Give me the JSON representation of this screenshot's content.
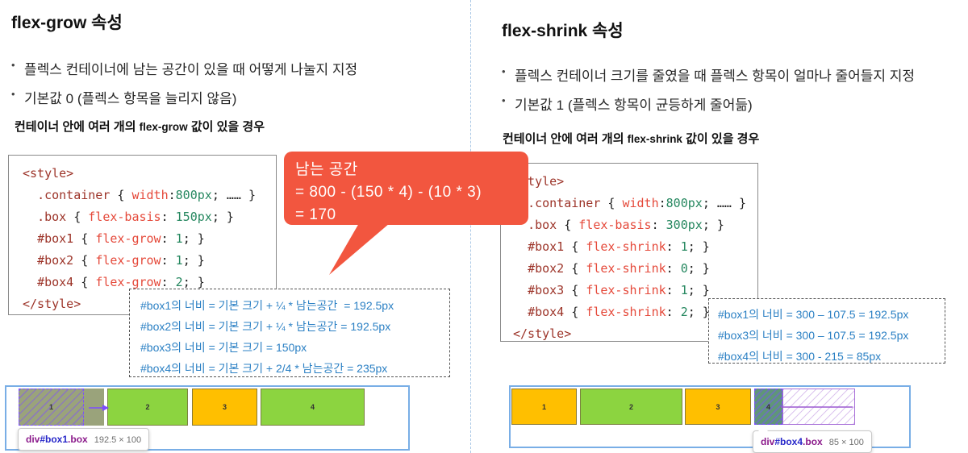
{
  "colors": {
    "accent_red_bubble": "#f2563f",
    "code_selector": "#9c3328",
    "code_property": "#e5493a",
    "code_value": "#25875f",
    "calc_blue": "#2b80c4",
    "box_green": "#8cd440",
    "box_orange": "#ffbf00",
    "overlay_sage": "#9aa37b",
    "overlay_teal": "#5f9678",
    "overlay_purple": "#7c4dff",
    "container_border_blue": "#79aee6"
  },
  "left": {
    "title": "flex-grow 속성",
    "bullets": [
      "플렉스 컨테이너에 남는 공간이 있을 때 어떻게 나눌지 지정",
      "기본값 0 (플렉스 항목을 늘리지 않음)"
    ],
    "subhead_pre": "컨테이너 안에 여러 개의 ",
    "subhead_latin": "flex-grow",
    "subhead_post": " 값이 있을 경우",
    "code_lines": [
      [
        [
          "sel",
          "<style>"
        ]
      ],
      [
        [
          "pln",
          "  "
        ],
        [
          "sel",
          ".container"
        ],
        [
          "pln",
          " { "
        ],
        [
          "prop",
          "width"
        ],
        [
          "pln",
          ":"
        ],
        [
          "val",
          "800px"
        ],
        [
          "pln",
          "; …… }"
        ]
      ],
      [
        [
          "pln",
          "  "
        ],
        [
          "sel",
          ".box"
        ],
        [
          "pln",
          " { "
        ],
        [
          "prop",
          "flex-basis"
        ],
        [
          "pln",
          ": "
        ],
        [
          "val",
          "150px"
        ],
        [
          "pln",
          "; }"
        ]
      ],
      [
        [
          "pln",
          "  "
        ],
        [
          "sel",
          "#box1"
        ],
        [
          "pln",
          " { "
        ],
        [
          "prop",
          "flex-grow"
        ],
        [
          "pln",
          ": "
        ],
        [
          "val",
          "1"
        ],
        [
          "pln",
          "; }"
        ]
      ],
      [
        [
          "pln",
          "  "
        ],
        [
          "sel",
          "#box2"
        ],
        [
          "pln",
          " { "
        ],
        [
          "prop",
          "flex-grow"
        ],
        [
          "pln",
          ": "
        ],
        [
          "val",
          "1"
        ],
        [
          "pln",
          "; }"
        ]
      ],
      [
        [
          "pln",
          "  "
        ],
        [
          "sel",
          "#box4"
        ],
        [
          "pln",
          " { "
        ],
        [
          "prop",
          "flex-grow"
        ],
        [
          "pln",
          ": "
        ],
        [
          "val",
          "2"
        ],
        [
          "pln",
          "; }"
        ]
      ],
      [
        [
          "sel",
          "</style>"
        ]
      ]
    ],
    "callout_lines": [
      "남는 공간",
      "= 800 - (150 * 4) - (10 * 3)",
      "= 170"
    ],
    "calc_lines": [
      "#box1의 너비 = 기본 크기 + ¼ * 남는공간  = 192.5px",
      "#box2의 너비 = 기본 크기 + ¼ * 남는공간 = 192.5px",
      "#box3의 너비 = 기본 크기 = 150px",
      "#box4의 너비 = 기본 크기 + 2/4 * 남는공간 = 235px"
    ],
    "items": [
      {
        "label": "1"
      },
      {
        "label": "2"
      },
      {
        "label": "3"
      },
      {
        "label": "4"
      }
    ],
    "tooltip": {
      "tag": "div",
      "id": "#box1",
      "class": ".box",
      "size": "192.5 × 100"
    }
  },
  "right": {
    "title": "flex-shrink 속성",
    "bullets": [
      "플렉스 컨테이너 크기를 줄였을 때 플렉스 항목이 얼마나 줄어들지 지정",
      "기본값 1 (플렉스 항목이 균등하게 줄어듦)"
    ],
    "subhead_pre": "컨테이너 안에 여러 개의 ",
    "subhead_latin": "flex-shrink",
    "subhead_post": " 값이 있을 경우",
    "code_lines": [
      [
        [
          "sel",
          "<style>"
        ]
      ],
      [
        [
          "pln",
          "  "
        ],
        [
          "sel",
          ".container"
        ],
        [
          "pln",
          " { "
        ],
        [
          "prop",
          "width"
        ],
        [
          "pln",
          ":"
        ],
        [
          "val",
          "800px"
        ],
        [
          "pln",
          "; …… }"
        ]
      ],
      [
        [
          "pln",
          "  "
        ],
        [
          "sel",
          ".box"
        ],
        [
          "pln",
          " { "
        ],
        [
          "prop",
          "flex-basis"
        ],
        [
          "pln",
          ": "
        ],
        [
          "val",
          "300px"
        ],
        [
          "pln",
          "; }"
        ]
      ],
      [
        [
          "pln",
          "  "
        ],
        [
          "sel",
          "#box1"
        ],
        [
          "pln",
          " { "
        ],
        [
          "prop",
          "flex-shrink"
        ],
        [
          "pln",
          ": "
        ],
        [
          "val",
          "1"
        ],
        [
          "pln",
          "; }"
        ]
      ],
      [
        [
          "pln",
          "  "
        ],
        [
          "sel",
          "#box2"
        ],
        [
          "pln",
          " { "
        ],
        [
          "prop",
          "flex-shrink"
        ],
        [
          "pln",
          ": "
        ],
        [
          "val",
          "0"
        ],
        [
          "pln",
          "; }"
        ]
      ],
      [
        [
          "pln",
          "  "
        ],
        [
          "sel",
          "#box3"
        ],
        [
          "pln",
          " { "
        ],
        [
          "prop",
          "flex-shrink"
        ],
        [
          "pln",
          ": "
        ],
        [
          "val",
          "1"
        ],
        [
          "pln",
          "; }"
        ]
      ],
      [
        [
          "pln",
          "  "
        ],
        [
          "sel",
          "#box4"
        ],
        [
          "pln",
          " { "
        ],
        [
          "prop",
          "flex-shrink"
        ],
        [
          "pln",
          ": "
        ],
        [
          "val",
          "2"
        ],
        [
          "pln",
          "; }"
        ]
      ],
      [
        [
          "sel",
          "</style>"
        ]
      ]
    ],
    "calc_lines": [
      "#box1의 너비 = 300 – 107.5 = 192.5px",
      "#box3의 너비 = 300 – 107.5 = 192.5px",
      "#box4의 너비 = 300 - 215 = 85px"
    ],
    "items": [
      {
        "label": "1"
      },
      {
        "label": "2"
      },
      {
        "label": "3"
      },
      {
        "label": "4"
      }
    ],
    "tooltip": {
      "tag": "div",
      "id": "#box4",
      "class": ".box",
      "size": "85 × 100"
    }
  }
}
